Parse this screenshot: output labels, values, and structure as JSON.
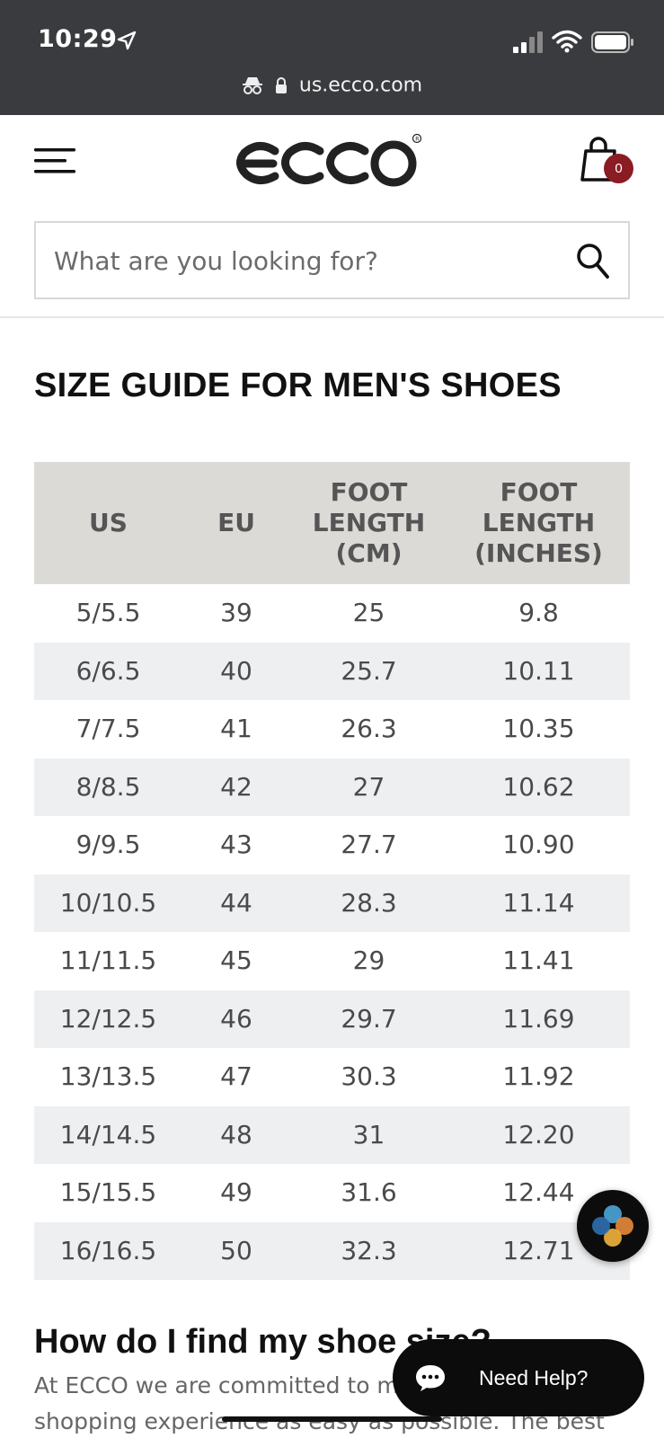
{
  "status_bar": {
    "time": "10:29",
    "url": "us.ecco.com"
  },
  "header": {
    "logo_text": "ecco",
    "cart_count": "0"
  },
  "search": {
    "placeholder": "What are you looking for?"
  },
  "page_title": "SIZE GUIDE FOR MEN'S SHOES",
  "size_table": {
    "headers": [
      "US",
      "EU",
      "FOOT\nLENGTH\n(CM)",
      "FOOT\nLENGTH\n(INCHES)"
    ],
    "rows": [
      [
        "5/5.5",
        "39",
        "25",
        "9.8"
      ],
      [
        "6/6.5",
        "40",
        "25.7",
        "10.11"
      ],
      [
        "7/7.5",
        "41",
        "26.3",
        "10.35"
      ],
      [
        "8/8.5",
        "42",
        "27",
        "10.62"
      ],
      [
        "9/9.5",
        "43",
        "27.7",
        "10.90"
      ],
      [
        "10/10.5",
        "44",
        "28.3",
        "11.14"
      ],
      [
        "11/11.5",
        "45",
        "29",
        "11.41"
      ],
      [
        "12/12.5",
        "46",
        "29.7",
        "11.69"
      ],
      [
        "13/13.5",
        "47",
        "30.3",
        "11.92"
      ],
      [
        "14/14.5",
        "48",
        "31",
        "12.20"
      ],
      [
        "15/15.5",
        "49",
        "31.6",
        "12.44"
      ],
      [
        "16/16.5",
        "50",
        "32.3",
        "12.71"
      ]
    ]
  },
  "faq": {
    "title": "How do I find my shoe size?",
    "line1": "At ECCO we are committed to making your",
    "line2": "shopping experience as easy as possible. The best"
  },
  "help_button": {
    "label": "Need Help?"
  },
  "colors": {
    "status_bar_bg": "#3a3b3f",
    "table_header_bg": "#dcdad7",
    "row_alt_bg": "#eeeff1",
    "cart_badge": "#8a1c24"
  }
}
